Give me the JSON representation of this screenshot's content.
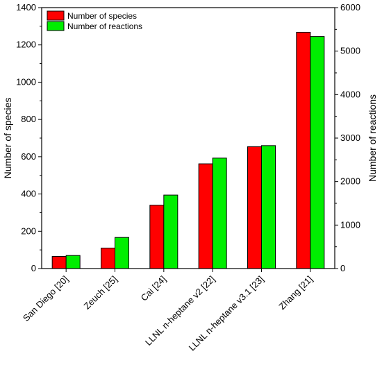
{
  "chart_data": {
    "type": "bar",
    "categories": [
      "San Diego [20]",
      "Zeuch [25]",
      "Cai [24]",
      "LLNL n-heptane v2 [22]",
      "LLNL n-heptane v3.1 [23]",
      "Zhang [21]"
    ],
    "series": [
      {
        "name": "Number of species",
        "axis": "left",
        "color": "#ff0000",
        "values": [
          65,
          110,
          340,
          562,
          654,
          1268
        ]
      },
      {
        "name": "Number of reactions",
        "axis": "right",
        "color": "#00ee00",
        "values": [
          300,
          715,
          1690,
          2540,
          2827,
          5336
        ]
      }
    ],
    "ylabel_left": "Number of species",
    "ylabel_right": "Number of reactions",
    "ylim_left": [
      0,
      1400
    ],
    "ylim_right": [
      0,
      6000
    ],
    "yticks_left": [
      0,
      200,
      400,
      600,
      800,
      1000,
      1200,
      1400
    ],
    "yticks_right": [
      0,
      1000,
      2000,
      3000,
      4000,
      5000,
      6000
    ],
    "legend_position": "top-left",
    "grid": false
  }
}
